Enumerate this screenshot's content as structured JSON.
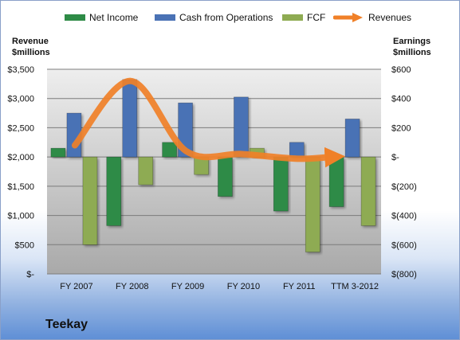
{
  "chart_data": {
    "type": "bar",
    "title": "Teekay",
    "categories": [
      "FY 2007",
      "FY 2008",
      "FY 2009",
      "FY 2010",
      "FY 2011",
      "TTM 3-2012"
    ],
    "series": [
      {
        "name": "Net Income",
        "axis": "right",
        "kind": "bar",
        "color": "#2e8b46",
        "values": [
          60,
          -470,
          100,
          -270,
          -370,
          -340
        ]
      },
      {
        "name": "Cash from Operations",
        "axis": "right",
        "kind": "bar",
        "color": "#4a72b5",
        "values": [
          300,
          530,
          370,
          410,
          100,
          260
        ]
      },
      {
        "name": "FCF",
        "axis": "right",
        "kind": "bar",
        "color": "#8eab52",
        "values": [
          -600,
          -190,
          -120,
          60,
          -650,
          -470
        ]
      },
      {
        "name": "Revenues",
        "axis": "left",
        "kind": "line",
        "color": "#f08028",
        "values": [
          2200,
          3300,
          2100,
          2050,
          1970,
          2000
        ]
      }
    ],
    "left_axis": {
      "label_line1": "Revenue",
      "label_line2": "$millions",
      "ylim": [
        0,
        3500
      ],
      "ticks": [
        0,
        500,
        1000,
        1500,
        2000,
        2500,
        3000,
        3500
      ],
      "tick_labels": [
        "$-",
        "$500",
        "$1,000",
        "$1,500",
        "$2,000",
        "$2,500",
        "$3,000",
        "$3,500"
      ]
    },
    "right_axis": {
      "label_line1": "Earnings",
      "label_line2": "$millions",
      "ylim": [
        -800,
        600
      ],
      "ticks": [
        600,
        400,
        200,
        0,
        -200,
        -400,
        -600,
        -800
      ],
      "tick_labels": [
        "$600",
        "$400",
        "$200",
        "$-",
        "$(200)",
        "$(400)",
        "$(600)",
        "$(800)"
      ]
    },
    "legend": {
      "placement": "top",
      "entries": [
        "Net Income",
        "Cash from Operations",
        "FCF",
        "Revenues"
      ]
    },
    "grid": true
  }
}
